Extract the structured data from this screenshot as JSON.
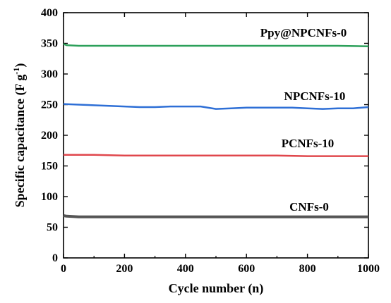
{
  "chart_data": {
    "type": "line",
    "title": "",
    "xlabel": "Cycle number  (n)",
    "ylabel_main": "Specific capacitance (F g",
    "ylabel_sup": "-1",
    "ylabel_tail": ")",
    "xlim": [
      0,
      1000
    ],
    "ylim": [
      0,
      400
    ],
    "xticks": [
      "0",
      "200",
      "400",
      "600",
      "800",
      "1000"
    ],
    "yticks": [
      "0",
      "50",
      "100",
      "150",
      "200",
      "250",
      "300",
      "350",
      "400"
    ],
    "grid": false,
    "legend": "none",
    "series": [
      {
        "name": "Ppy@NPCNFs-0",
        "color": "#2ca05a",
        "x": [
          0,
          10,
          50,
          100,
          200,
          300,
          400,
          500,
          600,
          700,
          800,
          900,
          1000
        ],
        "y": [
          349,
          347,
          346,
          346,
          346,
          346,
          346,
          346,
          346,
          346,
          346,
          346,
          345
        ]
      },
      {
        "name": "NPCNFs-10",
        "color": "#2e6fd6",
        "x": [
          0,
          50,
          100,
          150,
          200,
          250,
          300,
          350,
          400,
          450,
          500,
          550,
          600,
          650,
          700,
          750,
          800,
          850,
          900,
          950,
          1000
        ],
        "y": [
          251,
          250,
          249,
          248,
          247,
          246,
          246,
          247,
          247,
          247,
          243,
          244,
          245,
          245,
          245,
          245,
          244,
          243,
          244,
          244,
          246
        ]
      },
      {
        "name": "PCNFs-10",
        "color": "#e0474c",
        "x": [
          0,
          100,
          200,
          300,
          400,
          500,
          600,
          700,
          800,
          900,
          1000
        ],
        "y": [
          168,
          168,
          167,
          167,
          167,
          167,
          167,
          167,
          166,
          166,
          166
        ]
      },
      {
        "name": "CNFs-0",
        "color": "#555555",
        "x": [
          0,
          10,
          50,
          100,
          200,
          300,
          400,
          500,
          600,
          700,
          800,
          900,
          1000
        ],
        "y": [
          69,
          68,
          67,
          67,
          67,
          67,
          67,
          67,
          67,
          67,
          67,
          67,
          67
        ]
      }
    ]
  }
}
